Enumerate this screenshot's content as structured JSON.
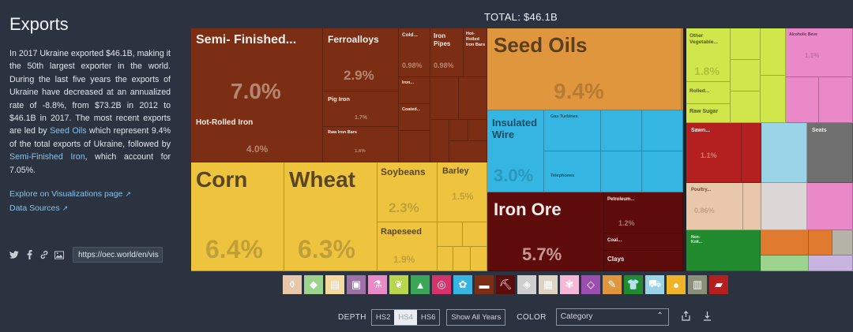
{
  "sidebar": {
    "title": "Exports",
    "desc_1": "In 2017 Ukraine exported $46.1B, making it the 50th largest exporter in the world. During the last five years the exports of Ukraine have decreased at an annualized rate of -8.8%, from $73.2B in 2012 to $46.1B in 2017. The most recent exports are led by ",
    "desc_link_1": "Seed Oils",
    "desc_2": " which represent 9.4% of the total exports of Ukraine, followed by ",
    "desc_link_2": "Semi-Finished Iron",
    "desc_3": ", which account for 7.05%.",
    "link_explore": "Explore on Visualizations page",
    "link_sources": "Data Sources",
    "share_url": "https://oec.world/en/vis"
  },
  "total": "TOTAL: $46.1B",
  "tiles": {
    "semi": {
      "label": "Semi- Finished...",
      "pct": "7.0%"
    },
    "hot": {
      "label": "Hot-Rolled Iron",
      "pct": "4.0%"
    },
    "ferro": {
      "label": "Ferroalloys",
      "pct": "2.9%"
    },
    "pig": {
      "label": "Pig Iron",
      "pct": "1.7%"
    },
    "rawiron": {
      "label": "Raw Iron Bars",
      "pct": "1.6%"
    },
    "cold": {
      "label": "Cold...",
      "pct": "0.98%"
    },
    "pipes": {
      "label": "Iron Pipes",
      "pct": "0.98%"
    },
    "hotbars": {
      "label": "Hot-Rolled Iron Bars"
    },
    "iron_s": {
      "label": "Iron..."
    },
    "coated": {
      "label": "Coated..."
    },
    "corn": {
      "label": "Corn",
      "pct": "6.4%"
    },
    "wheat": {
      "label": "Wheat",
      "pct": "6.3%"
    },
    "soy": {
      "label": "Soybeans",
      "pct": "2.3%"
    },
    "barley": {
      "label": "Barley",
      "pct": "1.5%"
    },
    "rape": {
      "label": "Rapeseed",
      "pct": "1.9%"
    },
    "seedoils": {
      "label": "Seed Oils",
      "pct": "9.4%"
    },
    "wire": {
      "label": "Insulated Wire",
      "pct": "3.0%"
    },
    "gasturb": {
      "label": "Gas Turbines"
    },
    "telephones": {
      "label": "Telephones"
    },
    "ironore": {
      "label": "Iron Ore",
      "pct": "5.7%"
    },
    "petro": {
      "label": "Petroleum...",
      "pct": "1.2%"
    },
    "coal": {
      "label": "Coal..."
    },
    "clays": {
      "label": "Clays"
    },
    "othveg": {
      "label": "Other Vegetable...",
      "pct": "1.8%"
    },
    "rolled": {
      "label": "Rolled..."
    },
    "rawsugar": {
      "label": "Raw Sugar"
    },
    "alcohol": {
      "label": "Alcoholic Beve",
      "pct": "1.1%"
    },
    "sawn": {
      "label": "Sawn...",
      "pct": "1.1%"
    },
    "seats": {
      "label": "Seats"
    },
    "poultry": {
      "label": "Poultry...",
      "pct": "0.86%"
    },
    "nonkn": {
      "label": "Non-Knit..."
    }
  },
  "controls": {
    "depth_label": "DEPTH",
    "hs2": "HS2",
    "hs4": "HS4",
    "hs6": "HS6",
    "show_all": "Show All Years",
    "color_label": "COLOR",
    "color_value": "Category"
  },
  "colors": {
    "metals": "#7b2e13",
    "vegetables": "#eec43f",
    "animal_veg_fats": "#e0963d",
    "machines": "#35b6e2",
    "minerals": "#5d0b0b",
    "foodstuffs": "#cfe74a",
    "chemicals": "#e989c8",
    "wood": "#b3201f",
    "transportation": "#9ad4e6",
    "animal": "#e8c7aa",
    "textiles": "#228a2f",
    "plastics": "#e07a2f"
  }
}
